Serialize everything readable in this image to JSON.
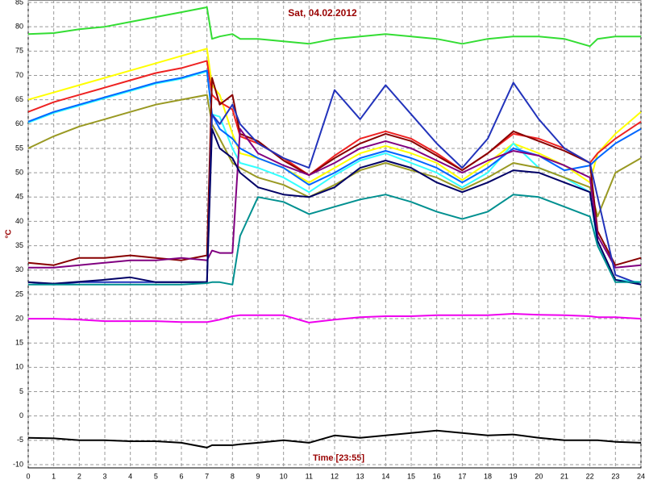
{
  "chart_data": {
    "type": "line",
    "title": "Sat, 04.02.2012",
    "xlabel": "Time [23:55]",
    "ylabel": "°C",
    "grid": true,
    "xlim": [
      0,
      24
    ],
    "ylim": [
      -10,
      85
    ],
    "xticks": [
      0,
      1,
      2,
      3,
      4,
      5,
      6,
      7,
      8,
      9,
      10,
      11,
      12,
      13,
      14,
      15,
      16,
      17,
      18,
      19,
      20,
      21,
      22,
      23,
      24
    ],
    "yticks": [
      -10,
      -5,
      0,
      5,
      10,
      15,
      20,
      25,
      30,
      35,
      40,
      45,
      50,
      55,
      60,
      65,
      70,
      75,
      80,
      85
    ],
    "x": [
      0,
      1,
      2,
      3,
      4,
      5,
      6,
      7,
      7.2,
      7.5,
      8,
      8.3,
      9,
      10,
      11,
      12,
      13,
      14,
      15,
      16,
      17,
      18,
      19,
      20,
      21,
      22,
      22.3,
      23,
      24
    ],
    "series": [
      {
        "color": "#33dd33",
        "values": [
          78.5,
          78.7,
          79.5,
          80,
          81,
          82,
          83,
          84,
          77.5,
          78,
          78.5,
          77.5,
          77.5,
          77,
          76.5,
          77.5,
          78,
          78.5,
          78,
          77.5,
          76.5,
          77.5,
          78,
          78,
          77.5,
          76,
          77.5,
          78,
          78
        ]
      },
      {
        "color": "#ffff00",
        "values": [
          65,
          66.5,
          68,
          69.5,
          71,
          72.5,
          74,
          75.5,
          68,
          66,
          58,
          54,
          53,
          51,
          48,
          51,
          54,
          55.5,
          54,
          52,
          48.5,
          52,
          56,
          54,
          51.5,
          48,
          54,
          58,
          62.5
        ]
      },
      {
        "color": "#ee2222",
        "values": [
          62.5,
          64.5,
          66,
          67.5,
          69,
          70.5,
          71.5,
          73,
          66,
          64.5,
          63,
          57.5,
          56,
          53,
          49.5,
          53.5,
          57,
          58.5,
          57,
          54,
          50.5,
          54,
          58,
          57,
          55,
          52,
          54,
          57,
          60.5
        ]
      },
      {
        "color": "#33ffff",
        "values": [
          60.3,
          62.3,
          63.8,
          65.3,
          66.8,
          68.3,
          69.3,
          70.8,
          62,
          61.5,
          55,
          52,
          51,
          49,
          46,
          49.5,
          52.5,
          54,
          52,
          50,
          47,
          50,
          56,
          51,
          49,
          46,
          35,
          28,
          27.5
        ]
      },
      {
        "color": "#0066ff",
        "values": [
          60.5,
          62.5,
          64,
          65.5,
          67,
          68.5,
          69.5,
          71,
          62,
          59,
          57,
          55,
          53,
          51,
          47.5,
          50,
          53,
          54.5,
          53,
          51,
          48,
          51,
          55,
          53.5,
          50.5,
          51.5,
          53,
          56,
          59
        ]
      },
      {
        "color": "#999922",
        "values": [
          55,
          57.5,
          59.5,
          61,
          62.5,
          64,
          65,
          66,
          60,
          57,
          52,
          51,
          49,
          47.5,
          45,
          47.5,
          50.5,
          52,
          50.5,
          49,
          46.5,
          49,
          52,
          51,
          49,
          47,
          41,
          50,
          53
        ]
      },
      {
        "color": "#880000",
        "values": [
          31.5,
          31,
          32.5,
          32.5,
          33,
          32.5,
          32,
          33,
          69.5,
          64,
          66,
          58,
          56.5,
          52.5,
          49.5,
          53,
          56,
          58,
          56.5,
          53.5,
          50.5,
          54,
          58.5,
          56.5,
          54.5,
          52,
          38,
          31,
          32.5
        ]
      },
      {
        "color": "#800080",
        "values": [
          30.5,
          30.5,
          31,
          31.5,
          32,
          32,
          32.5,
          32,
          34,
          33.5,
          33.5,
          59,
          54,
          51.5,
          49.5,
          52,
          55,
          56.5,
          55,
          52.5,
          50,
          52.5,
          54.5,
          53.5,
          51.5,
          49,
          37,
          30.5,
          31
        ]
      },
      {
        "color": "#2233bb",
        "values": [
          27.5,
          27,
          27.5,
          27.5,
          27.5,
          27.5,
          27.5,
          27.5,
          62,
          60,
          64,
          60,
          56,
          53,
          51,
          67,
          61,
          68,
          62,
          56,
          51,
          57,
          68.5,
          61,
          55,
          52,
          45,
          29,
          27
        ]
      },
      {
        "color": "#000066",
        "values": [
          27.5,
          27.2,
          27.6,
          28,
          28.5,
          27.5,
          27.5,
          27.5,
          59,
          55,
          53,
          50,
          47,
          45.5,
          45,
          47,
          51,
          52.5,
          51,
          48,
          46,
          48,
          50.5,
          50,
          48,
          46,
          36,
          28,
          27
        ]
      },
      {
        "color": "#009090",
        "values": [
          27,
          27,
          27,
          27,
          27,
          27,
          27,
          27.3,
          27.5,
          27.5,
          27,
          37,
          45,
          44,
          41.5,
          43,
          44.5,
          45.5,
          44,
          42,
          40.5,
          42,
          45.5,
          45,
          43,
          41,
          35,
          27.5,
          27.5
        ]
      },
      {
        "color": "#ee00ee",
        "values": [
          20,
          20,
          19.8,
          19.5,
          19.5,
          19.5,
          19.3,
          19.3,
          19.5,
          19.8,
          20.5,
          20.7,
          20.7,
          20.7,
          19.2,
          19.8,
          20.3,
          20.5,
          20.5,
          20.7,
          20.7,
          20.7,
          21,
          20.8,
          20.7,
          20.5,
          20.3,
          20.3,
          20
        ]
      },
      {
        "color": "#000000",
        "values": [
          -4.5,
          -4.6,
          -5,
          -5,
          -5.2,
          -5.2,
          -5.5,
          -6.5,
          -6,
          -6,
          -6,
          -5.8,
          -5.5,
          -5,
          -5.5,
          -4,
          -4.5,
          -4,
          -3.5,
          -3,
          -3.5,
          -4,
          -3.8,
          -4.5,
          -5,
          -5,
          -5,
          -5.3,
          -5.5
        ]
      }
    ]
  }
}
